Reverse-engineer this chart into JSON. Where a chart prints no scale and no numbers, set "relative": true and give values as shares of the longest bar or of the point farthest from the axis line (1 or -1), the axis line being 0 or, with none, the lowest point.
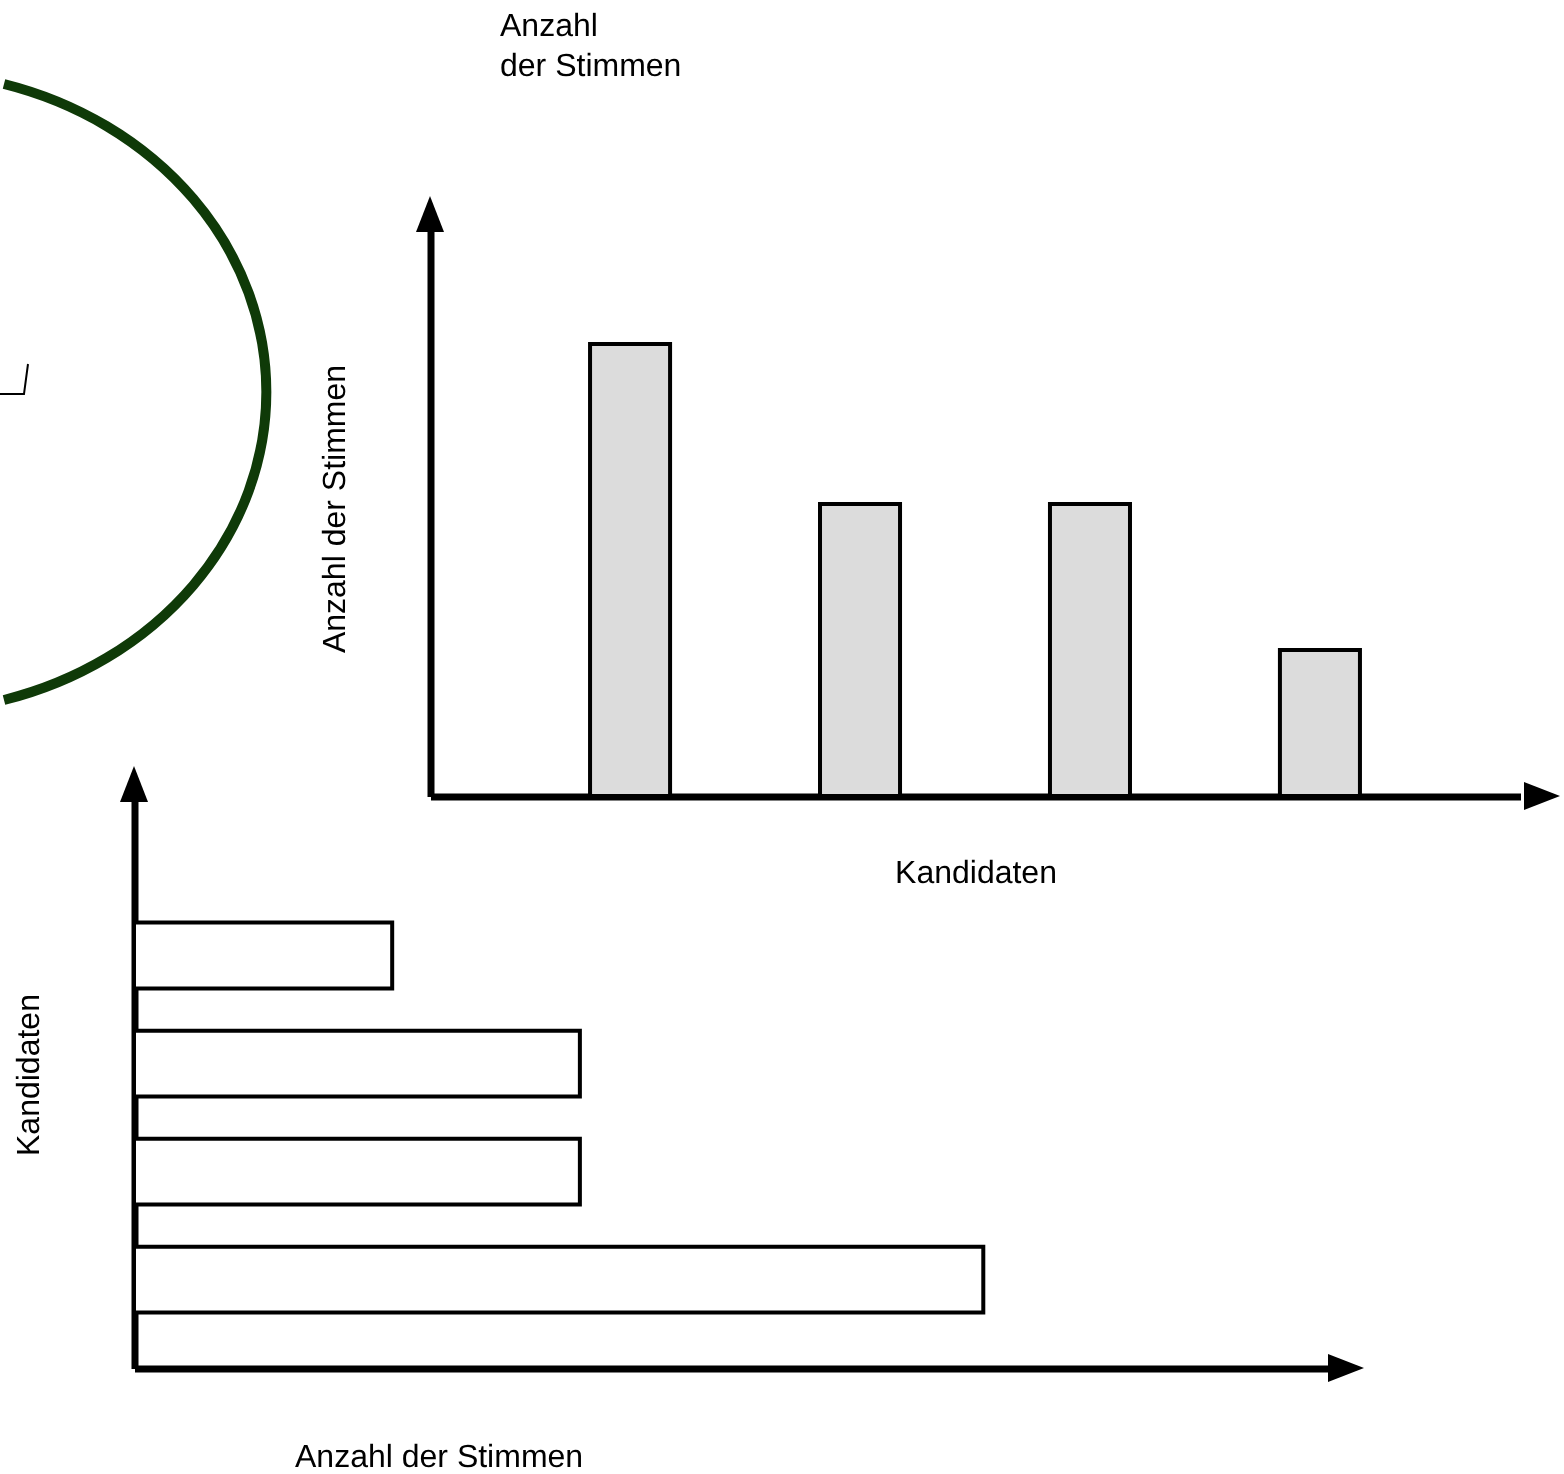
{
  "chart_data": [
    {
      "type": "bar",
      "relative": true,
      "categories": [
        null,
        null,
        null,
        null
      ],
      "values": [
        1,
        0.646,
        0.646,
        0.323
      ],
      "color": "#dcdcdc",
      "xlabel": "Kandidaten",
      "ylabel": "Anzahl der Stimmen",
      "annotations": [
        "Anzahl der Stimmen"
      ]
    },
    {
      "type": "bar",
      "relative": true,
      "orientation": "horizontal",
      "categories": [
        null,
        null,
        null,
        null
      ],
      "values": [
        0.304,
        0.525,
        0.525,
        1
      ],
      "color": "#ffffff",
      "xlabel": "Anzahl der Stimmen",
      "ylabel": "Kandidaten"
    }
  ]
}
